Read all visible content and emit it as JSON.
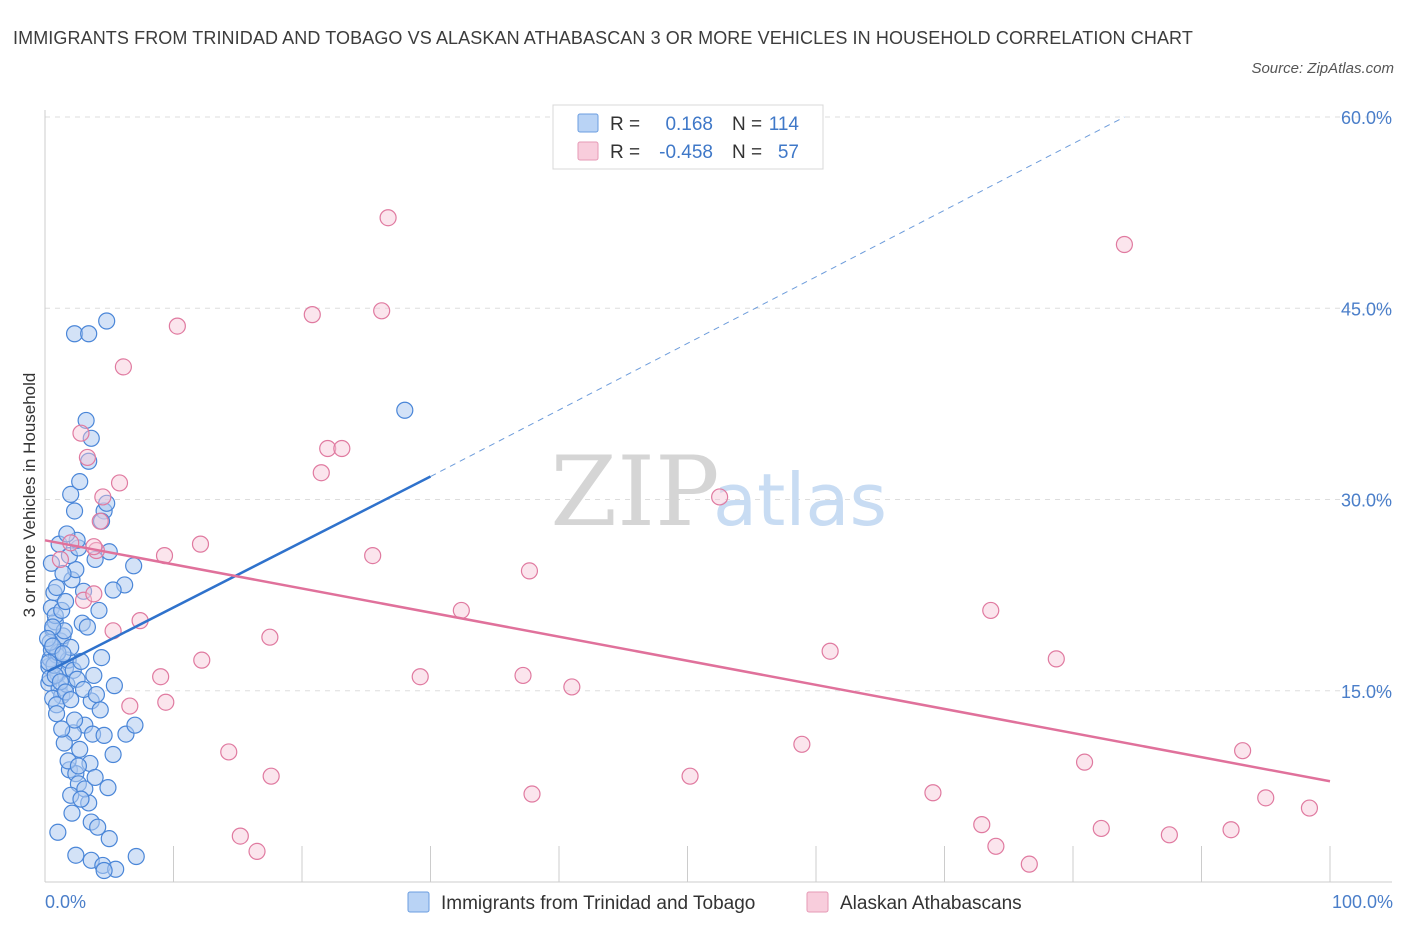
{
  "title": "IMMIGRANTS FROM TRINIDAD AND TOBAGO VS ALASKAN ATHABASCAN 3 OR MORE VEHICLES IN HOUSEHOLD CORRELATION CHART",
  "source": "Source: ZipAtlas.com",
  "watermark": {
    "zip": "ZIP",
    "atlas": "atlas"
  },
  "colors": {
    "blue": "#4a86d8",
    "blue_fill": "#aecbf0",
    "pink": "#e07aa0",
    "pink_fill": "#f6c6d6",
    "blue_line": "#2f72cc",
    "pink_line": "#e0719b",
    "tick_text": "#4a7ec9",
    "grid": "#dddddd"
  },
  "legend": {
    "r_label": "R =",
    "n_label": "N =",
    "series": [
      {
        "r": "0.168",
        "n": "114"
      },
      {
        "r": "-0.458",
        "n": "57"
      }
    ]
  },
  "chart_data": {
    "type": "scatter",
    "xlabel": "",
    "ylabel": "3 or more Vehicles in Household",
    "x_tick_labels": [
      "0.0%",
      "100.0%"
    ],
    "y_tick_labels": [
      "15.0%",
      "30.0%",
      "45.0%",
      "60.0%"
    ],
    "y_ticks": [
      15,
      30,
      45,
      60
    ],
    "xlim": [
      0,
      100
    ],
    "ylim": [
      0,
      60
    ],
    "grid": true,
    "series": [
      {
        "name": "Immigrants from Trinidad and Tobago",
        "trend": {
          "x": [
            0.2,
            30
          ],
          "y": [
            16.5,
            31.8
          ],
          "extended_to": {
            "x": 84,
            "y": 60
          }
        },
        "points": [
          [
            0.3,
            16.9
          ],
          [
            0.4,
            17.5
          ],
          [
            0.5,
            18.2
          ],
          [
            0.3,
            15.6
          ],
          [
            0.6,
            19.8
          ],
          [
            0.8,
            20.4
          ],
          [
            0.5,
            21.5
          ],
          [
            0.7,
            22.7
          ],
          [
            0.9,
            17.8
          ],
          [
            1.0,
            16.3
          ],
          [
            1.2,
            18.9
          ],
          [
            1.4,
            19.3
          ],
          [
            1.1,
            15.2
          ],
          [
            1.3,
            14.6
          ],
          [
            0.6,
            14.4
          ],
          [
            0.9,
            13.9
          ],
          [
            1.6,
            16.8
          ],
          [
            1.8,
            17.4
          ],
          [
            2.0,
            18.4
          ],
          [
            1.5,
            19.7
          ],
          [
            0.4,
            16.0
          ],
          [
            0.7,
            17.0
          ],
          [
            1.0,
            18.0
          ],
          [
            1.7,
            15.5
          ],
          [
            2.2,
            16.6
          ],
          [
            2.5,
            15.9
          ],
          [
            2.8,
            17.3
          ],
          [
            0.8,
            20.9
          ],
          [
            1.3,
            21.3
          ],
          [
            1.6,
            22.0
          ],
          [
            2.1,
            23.7
          ],
          [
            2.4,
            24.5
          ],
          [
            1.9,
            25.6
          ],
          [
            2.6,
            26.2
          ],
          [
            0.5,
            25.0
          ],
          [
            1.1,
            26.5
          ],
          [
            2.3,
            29.1
          ],
          [
            2.0,
            30.4
          ],
          [
            2.7,
            31.4
          ],
          [
            3.4,
            33.0
          ],
          [
            3.6,
            34.8
          ],
          [
            3.2,
            36.2
          ],
          [
            4.6,
            29.1
          ],
          [
            4.4,
            28.3
          ],
          [
            4.8,
            29.7
          ],
          [
            3.9,
            25.3
          ],
          [
            5.0,
            25.9
          ],
          [
            6.2,
            23.3
          ],
          [
            5.3,
            22.9
          ],
          [
            6.9,
            24.8
          ],
          [
            4.2,
            21.3
          ],
          [
            3.0,
            22.8
          ],
          [
            2.9,
            20.3
          ],
          [
            3.3,
            20.0
          ],
          [
            4.4,
            17.6
          ],
          [
            5.4,
            15.4
          ],
          [
            3.6,
            14.2
          ],
          [
            4.3,
            13.5
          ],
          [
            3.1,
            12.3
          ],
          [
            3.7,
            11.6
          ],
          [
            2.2,
            11.7
          ],
          [
            1.5,
            10.9
          ],
          [
            2.7,
            10.4
          ],
          [
            3.5,
            9.3
          ],
          [
            4.6,
            11.5
          ],
          [
            6.3,
            11.6
          ],
          [
            7.0,
            12.3
          ],
          [
            5.3,
            10.0
          ],
          [
            1.9,
            8.8
          ],
          [
            2.4,
            8.5
          ],
          [
            2.6,
            7.7
          ],
          [
            2.0,
            6.8
          ],
          [
            3.4,
            6.2
          ],
          [
            2.1,
            5.4
          ],
          [
            3.6,
            4.7
          ],
          [
            1.0,
            3.9
          ],
          [
            5.0,
            3.4
          ],
          [
            4.1,
            4.3
          ],
          [
            2.4,
            2.1
          ],
          [
            3.6,
            1.7
          ],
          [
            4.5,
            1.3
          ],
          [
            5.5,
            1.0
          ],
          [
            7.1,
            2.0
          ],
          [
            4.6,
            0.9
          ],
          [
            2.3,
            43.0
          ],
          [
            3.4,
            43.0
          ],
          [
            4.8,
            44.0
          ],
          [
            28.0,
            37.0
          ],
          [
            1.4,
            24.2
          ],
          [
            2.5,
            26.8
          ],
          [
            1.7,
            27.3
          ],
          [
            0.9,
            23.1
          ],
          [
            0.6,
            20.0
          ],
          [
            0.4,
            18.8
          ],
          [
            0.3,
            17.2
          ],
          [
            0.8,
            16.2
          ],
          [
            1.2,
            15.7
          ],
          [
            1.6,
            14.9
          ],
          [
            2.0,
            14.3
          ],
          [
            3.0,
            15.1
          ],
          [
            3.8,
            16.2
          ],
          [
            4.0,
            14.7
          ],
          [
            2.3,
            12.7
          ],
          [
            1.3,
            12.0
          ],
          [
            0.9,
            13.2
          ],
          [
            1.8,
            9.5
          ],
          [
            2.6,
            9.1
          ],
          [
            3.1,
            7.3
          ],
          [
            2.8,
            6.5
          ],
          [
            3.9,
            8.2
          ],
          [
            4.9,
            7.4
          ],
          [
            0.2,
            19.1
          ],
          [
            0.6,
            18.5
          ],
          [
            1.4,
            17.9
          ]
        ]
      },
      {
        "name": "Alaskan Athabascans",
        "trend": {
          "x": [
            0,
            100
          ],
          "y": [
            26.8,
            7.9
          ]
        },
        "points": [
          [
            2.8,
            35.2
          ],
          [
            3.3,
            33.3
          ],
          [
            4.5,
            30.2
          ],
          [
            4.3,
            28.3
          ],
          [
            5.8,
            31.3
          ],
          [
            6.1,
            40.4
          ],
          [
            10.3,
            43.6
          ],
          [
            20.8,
            44.5
          ],
          [
            26.2,
            44.8
          ],
          [
            26.7,
            52.1
          ],
          [
            22.0,
            34.0
          ],
          [
            23.1,
            34.0
          ],
          [
            21.5,
            32.1
          ],
          [
            2.0,
            26.6
          ],
          [
            4.0,
            26.0
          ],
          [
            3.8,
            26.3
          ],
          [
            1.2,
            25.3
          ],
          [
            9.3,
            25.6
          ],
          [
            12.1,
            26.5
          ],
          [
            25.5,
            25.6
          ],
          [
            37.7,
            24.4
          ],
          [
            52.5,
            30.2
          ],
          [
            3.0,
            22.1
          ],
          [
            3.8,
            22.6
          ],
          [
            5.3,
            19.7
          ],
          [
            7.4,
            20.5
          ],
          [
            17.5,
            19.2
          ],
          [
            32.4,
            21.3
          ],
          [
            12.2,
            17.4
          ],
          [
            9.0,
            16.1
          ],
          [
            29.2,
            16.1
          ],
          [
            37.2,
            16.2
          ],
          [
            41.0,
            15.3
          ],
          [
            61.1,
            18.1
          ],
          [
            73.6,
            21.3
          ],
          [
            78.7,
            17.5
          ],
          [
            9.4,
            14.1
          ],
          [
            6.6,
            13.8
          ],
          [
            14.3,
            10.2
          ],
          [
            17.6,
            8.3
          ],
          [
            37.9,
            6.9
          ],
          [
            50.2,
            8.3
          ],
          [
            58.9,
            10.8
          ],
          [
            80.9,
            9.4
          ],
          [
            93.2,
            10.3
          ],
          [
            95.0,
            6.6
          ],
          [
            98.4,
            5.8
          ],
          [
            69.1,
            7.0
          ],
          [
            72.9,
            4.5
          ],
          [
            74.0,
            2.8
          ],
          [
            76.6,
            1.4
          ],
          [
            82.2,
            4.2
          ],
          [
            87.5,
            3.7
          ],
          [
            92.3,
            4.1
          ],
          [
            15.2,
            3.6
          ],
          [
            16.5,
            2.4
          ],
          [
            84.0,
            50.0
          ]
        ]
      }
    ]
  }
}
